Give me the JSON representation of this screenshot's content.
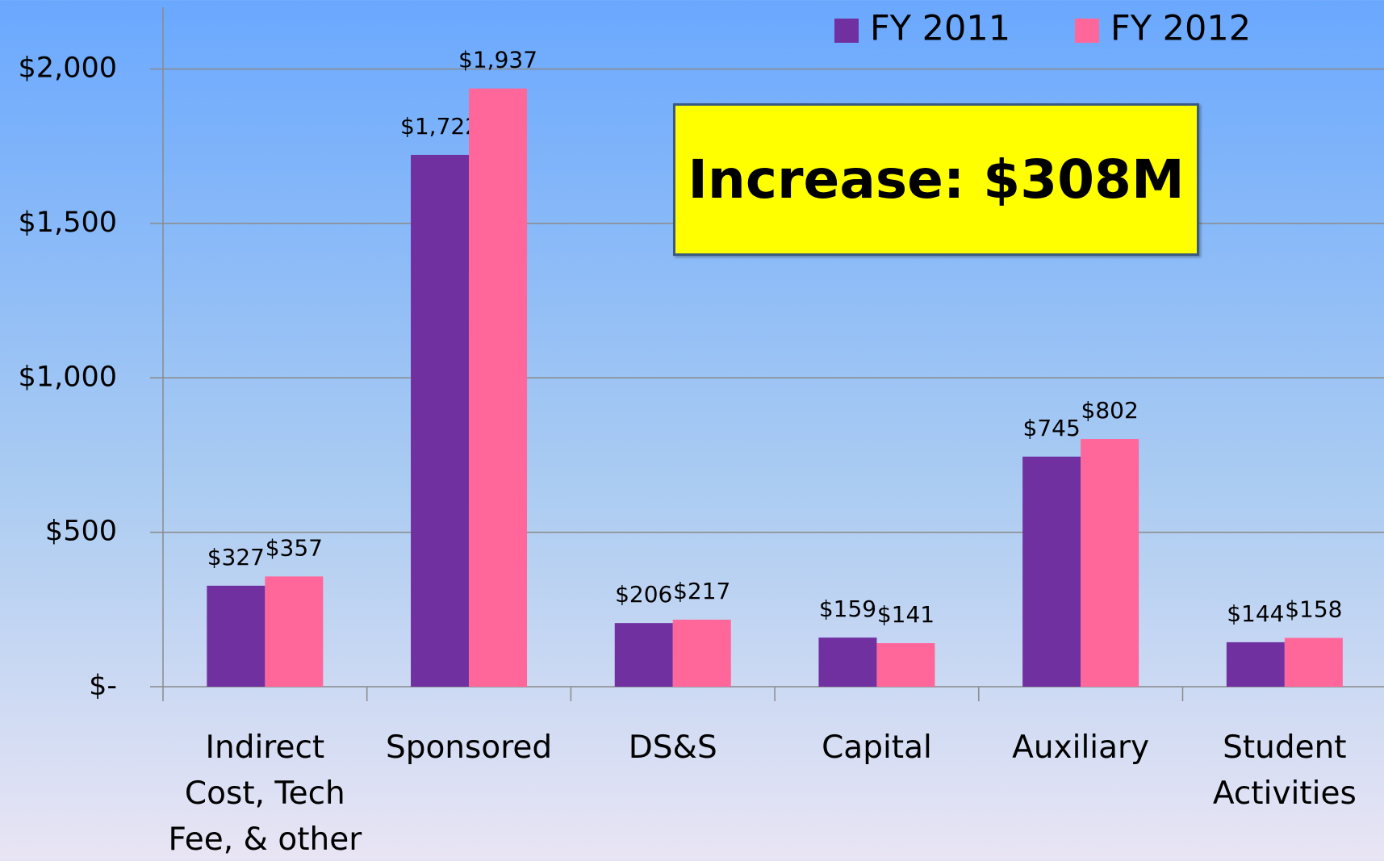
{
  "chart_data": {
    "type": "bar",
    "categories": [
      "Indirect Cost, Tech Fee, & other",
      "Sponsored",
      "DS&S",
      "Capital",
      "Auxiliary",
      "Student Activities"
    ],
    "series": [
      {
        "name": "FY 2011",
        "color": "#7030a0",
        "values": [
          327,
          1722,
          206,
          159,
          745,
          144
        ],
        "value_labels": [
          "$327",
          "$1,722",
          "$206",
          "$159",
          "$745",
          "$144"
        ]
      },
      {
        "name": "FY 2012",
        "color": "#ff6699",
        "values": [
          357,
          1937,
          217,
          141,
          802,
          158
        ],
        "value_labels": [
          "$357",
          "$1,937",
          "$217",
          "$141",
          "$802",
          "$158"
        ]
      }
    ],
    "ylim": [
      0,
      2200
    ],
    "yticks": [
      {
        "value": 0,
        "label": "$-"
      },
      {
        "value": 500,
        "label": "$500"
      },
      {
        "value": 1000,
        "label": "$1,000"
      },
      {
        "value": 1500,
        "label": "$1,500"
      },
      {
        "value": 2000,
        "label": "$2,000"
      }
    ],
    "grid": true,
    "legend": "top-right",
    "annotation": "Increase: $308M"
  }
}
